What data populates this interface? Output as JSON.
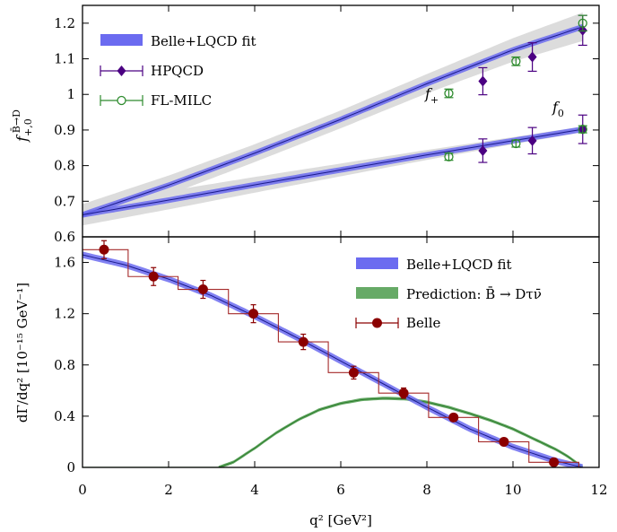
{
  "chart_data": [
    {
      "type": "line",
      "panel": "top",
      "ylabel": "f+,0 B̄→D",
      "xlim": [
        0,
        12
      ],
      "ylim": [
        0.6,
        1.25
      ],
      "yticks": [
        "0.6",
        "0.7",
        "0.8",
        "0.9",
        "1",
        "1.1",
        "1.2"
      ],
      "annotations": {
        "fplus": "f+",
        "fzero": "f0"
      },
      "legend_position": "top-left",
      "legend": {
        "fit": "Belle+LQCD fit",
        "hpqcd": "HPQCD",
        "fnal": "FL-MILC"
      },
      "colors": {
        "fit": "#6b6bf0",
        "band": "#dcdcdc",
        "hpqcd": "#4b0082",
        "fnal": "#2e8b2e"
      },
      "series": [
        {
          "name": "f+ fit",
          "x": [
            0,
            2,
            4,
            6,
            8,
            10,
            11.62
          ],
          "y": [
            0.662,
            0.745,
            0.835,
            0.93,
            1.03,
            1.125,
            1.19
          ],
          "band_halfwidth": [
            0.03,
            0.027,
            0.025,
            0.025,
            0.027,
            0.033,
            0.04
          ]
        },
        {
          "name": "f0 fit",
          "x": [
            0,
            2,
            4,
            6,
            8,
            10,
            11.62
          ],
          "y": [
            0.662,
            0.703,
            0.746,
            0.788,
            0.83,
            0.87,
            0.902
          ],
          "band_halfwidth": [
            0.03,
            0.026,
            0.022,
            0.018,
            0.014,
            0.01,
            0.008
          ]
        },
        {
          "name": "HPQCD",
          "points": [
            {
              "x": 9.3,
              "y": 1.037,
              "err": 0.038
            },
            {
              "x": 10.45,
              "y": 1.105,
              "err": 0.04
            },
            {
              "x": 11.62,
              "y": 1.18,
              "err": 0.042
            },
            {
              "x": 9.3,
              "y": 0.842,
              "err": 0.033
            },
            {
              "x": 10.45,
              "y": 0.87,
              "err": 0.037
            },
            {
              "x": 11.62,
              "y": 0.902,
              "err": 0.04
            }
          ]
        },
        {
          "name": "FL-MILC",
          "points": [
            {
              "x": 8.51,
              "y": 1.003,
              "err": 0.012
            },
            {
              "x": 10.07,
              "y": 1.093,
              "err": 0.012
            },
            {
              "x": 11.62,
              "y": 1.2,
              "err": 0.022
            },
            {
              "x": 8.51,
              "y": 0.825,
              "err": 0.01
            },
            {
              "x": 10.07,
              "y": 0.862,
              "err": 0.01
            },
            {
              "x": 11.62,
              "y": 0.902,
              "err": 0.01
            }
          ]
        }
      ]
    },
    {
      "type": "line",
      "panel": "bottom",
      "xlabel": "q² [GeV²]",
      "ylabel": "dΓ/dq² [10⁻¹⁵ GeV⁻¹]",
      "xlim": [
        0,
        12
      ],
      "ylim": [
        0,
        1.8
      ],
      "xticks": [
        "0",
        "2",
        "4",
        "6",
        "8",
        "10",
        "12"
      ],
      "yticks": [
        "0",
        "0.4",
        "0.8",
        "1.2",
        "1.6"
      ],
      "legend_position": "top-right",
      "legend": {
        "fit": "Belle+LQCD fit",
        "prediction": "Prediction: B̄ → Dτν̄",
        "belle": "Belle"
      },
      "colors": {
        "fit": "#6b6bf0",
        "prediction": "#66aa66",
        "belle": "#8b0000"
      },
      "series": [
        {
          "name": "Belle+LQCD fit",
          "x": [
            0,
            1,
            2,
            3,
            4,
            5,
            6,
            7,
            8,
            9,
            10,
            11,
            11.62
          ],
          "y": [
            1.66,
            1.58,
            1.47,
            1.34,
            1.18,
            1.01,
            0.83,
            0.65,
            0.47,
            0.3,
            0.16,
            0.05,
            0.0
          ]
        },
        {
          "name": "Prediction: B̄ → Dτν̄",
          "x": [
            3.16,
            3.5,
            4,
            4.5,
            5,
            5.5,
            6,
            6.5,
            7,
            7.5,
            8,
            8.5,
            9,
            9.5,
            10,
            10.5,
            11,
            11.3,
            11.62
          ],
          "y": [
            0,
            0.04,
            0.15,
            0.27,
            0.37,
            0.45,
            0.5,
            0.53,
            0.54,
            0.535,
            0.51,
            0.47,
            0.42,
            0.365,
            0.3,
            0.22,
            0.14,
            0.08,
            0
          ],
          "band_halfwidth": 0.012
        },
        {
          "name": "Belle",
          "bin_edges": [
            0,
            1.06,
            2.22,
            3.39,
            4.55,
            5.71,
            6.88,
            8.04,
            9.2,
            10.37,
            11.53,
            11.62
          ],
          "points": [
            {
              "x": 0.5,
              "y": 1.7,
              "err": 0.07
            },
            {
              "x": 1.65,
              "y": 1.49,
              "err": 0.07
            },
            {
              "x": 2.8,
              "y": 1.39,
              "err": 0.07
            },
            {
              "x": 3.97,
              "y": 1.2,
              "err": 0.07
            },
            {
              "x": 5.13,
              "y": 0.98,
              "err": 0.06
            },
            {
              "x": 6.3,
              "y": 0.74,
              "err": 0.05
            },
            {
              "x": 7.46,
              "y": 0.58,
              "err": 0.04
            },
            {
              "x": 8.62,
              "y": 0.39,
              "err": 0.02
            },
            {
              "x": 9.79,
              "y": 0.2,
              "err": 0.02
            },
            {
              "x": 10.95,
              "y": 0.04,
              "err": 0.01
            }
          ]
        }
      ]
    }
  ]
}
